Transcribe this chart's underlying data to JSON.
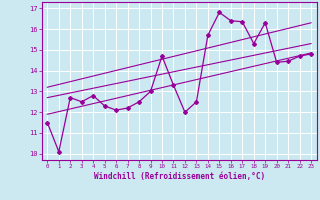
{
  "xlabel": "Windchill (Refroidissement éolien,°C)",
  "xlim": [
    -0.5,
    23.5
  ],
  "ylim": [
    9.7,
    17.3
  ],
  "yticks": [
    10,
    11,
    12,
    13,
    14,
    15,
    16,
    17
  ],
  "xticks": [
    0,
    1,
    2,
    3,
    4,
    5,
    6,
    7,
    8,
    9,
    10,
    11,
    12,
    13,
    14,
    15,
    16,
    17,
    18,
    19,
    20,
    21,
    22,
    23
  ],
  "bg_color": "#cce8f0",
  "line_color": "#990099",
  "grid_color": "#ffffff",
  "series": [
    [
      0,
      11.5
    ],
    [
      1,
      10.1
    ],
    [
      2,
      12.7
    ],
    [
      3,
      12.5
    ],
    [
      4,
      12.8
    ],
    [
      5,
      12.3
    ],
    [
      6,
      12.1
    ],
    [
      7,
      12.2
    ],
    [
      8,
      12.5
    ],
    [
      9,
      13.0
    ],
    [
      10,
      14.7
    ],
    [
      11,
      13.3
    ],
    [
      12,
      12.0
    ],
    [
      13,
      12.5
    ],
    [
      14,
      15.7
    ],
    [
      15,
      16.8
    ],
    [
      16,
      16.4
    ],
    [
      17,
      16.35
    ],
    [
      18,
      15.3
    ],
    [
      19,
      16.3
    ],
    [
      20,
      14.4
    ],
    [
      21,
      14.45
    ],
    [
      22,
      14.7
    ],
    [
      23,
      14.8
    ]
  ],
  "regression_lines": [
    {
      "x": [
        0,
        23
      ],
      "y": [
        11.9,
        14.85
      ]
    },
    {
      "x": [
        0,
        23
      ],
      "y": [
        12.7,
        15.3
      ]
    },
    {
      "x": [
        0,
        23
      ],
      "y": [
        13.2,
        16.3
      ]
    }
  ]
}
